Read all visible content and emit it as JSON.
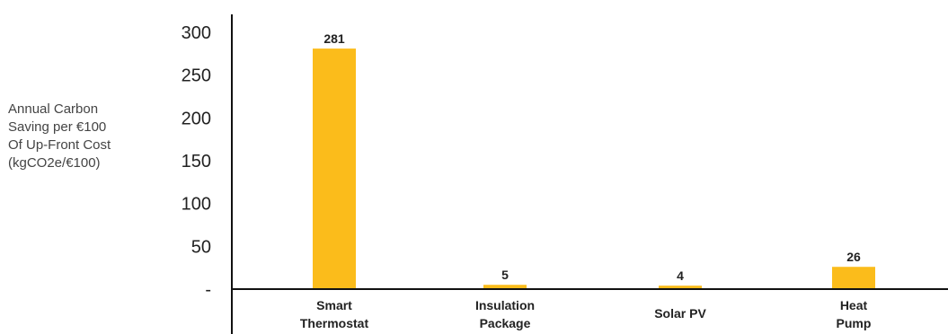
{
  "chart_data": {
    "type": "bar",
    "categories": [
      [
        "Smart",
        "Thermostat"
      ],
      [
        "Insulation",
        "Package"
      ],
      [
        "Solar PV"
      ],
      [
        "Heat",
        "Pump"
      ]
    ],
    "values": [
      281,
      5,
      4,
      26
    ],
    "data_labels": [
      "281",
      "5",
      "4",
      "26"
    ],
    "ylabel": [
      "Annual Carbon",
      "Saving per €100",
      "Of Up-Front Cost",
      "(kgCO2e/€100)"
    ],
    "yticks": [
      {
        "value": 300,
        "label": "300"
      },
      {
        "value": 250,
        "label": "250"
      },
      {
        "value": 200,
        "label": "200"
      },
      {
        "value": 150,
        "label": "150"
      },
      {
        "value": 100,
        "label": "100"
      },
      {
        "value": 50,
        "label": "50"
      },
      {
        "value": 0,
        "label": "-"
      }
    ],
    "ylim": [
      0,
      300
    ],
    "grid": false,
    "colors": {
      "bar": "#fbbc1b",
      "axis": "#111111"
    }
  }
}
